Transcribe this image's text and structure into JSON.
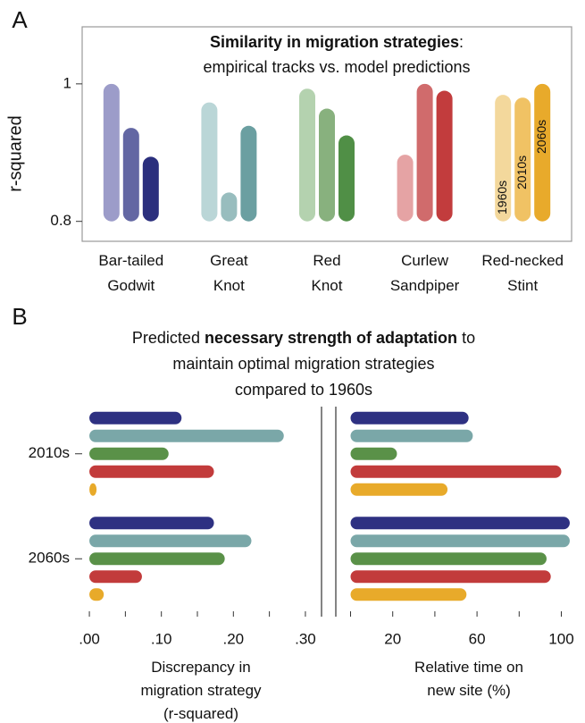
{
  "chart_data": [
    {
      "type": "bar",
      "panel": "A",
      "title_bold": "Similarity in migration strategies",
      "title_end": ":",
      "subtitle": "empirical tracks vs. model predictions",
      "y_label": "r-squared",
      "categories": [
        "Bar-tailed\nGodwit",
        "Great\nKnot",
        "Red\nKnot",
        "Curlew\nSandpiper",
        "Red-necked\nStint"
      ],
      "series": [
        {
          "name": "1960s",
          "colors": [
            "#9c9cc9",
            "#bad6d7",
            "#b4d2af",
            "#e5a3a4",
            "#f3d89c"
          ],
          "values": [
            1.0,
            0.973,
            0.993,
            0.897,
            0.984
          ]
        },
        {
          "name": "2010s",
          "colors": [
            "#6367a3",
            "#98bdbe",
            "#88b17e",
            "#d06b6c",
            "#f0c264"
          ],
          "values": [
            0.936,
            0.842,
            0.964,
            1.0,
            0.98
          ]
        },
        {
          "name": "2060s",
          "colors": [
            "#2b2f7d",
            "#6b9fa1",
            "#508f46",
            "#c23c3d",
            "#e8aa2b"
          ],
          "values": [
            0.894,
            0.939,
            0.925,
            0.99,
            1.0
          ]
        }
      ],
      "ylim": [
        0.771,
        1.083
      ],
      "yticks": [
        0.8,
        1
      ]
    },
    {
      "type": "hbar",
      "panel": "B",
      "title": "Predicted",
      "title_bold": "necessary strength of adaptation",
      "title_end": "to\nmaintain optimal migration strategies\ncompared to 1960s",
      "x_label": "Discrepancy in\nmigration strategy\n(r-squared)",
      "categories": [
        "2010s",
        "2060s"
      ],
      "series": [
        {
          "color": "#2e3182",
          "values": [
            0.128,
            0.173
          ]
        },
        {
          "color": "#7aa7a8",
          "values": [
            0.27,
            0.225
          ]
        },
        {
          "color": "#5a9148",
          "values": [
            0.11,
            0.188
          ]
        },
        {
          "color": "#c23b3b",
          "values": [
            0.173,
            0.073
          ]
        },
        {
          "color": "#e8aa2a",
          "values": [
            0.01,
            0.02
          ]
        }
      ],
      "xlim": [
        -0.01,
        0.31
      ],
      "xticks": [
        {
          "value": 0,
          "label": ".00"
        },
        {
          "value": 0.1,
          "label": ".10"
        },
        {
          "value": 0.2,
          "label": ".20"
        },
        {
          "value": 0.3,
          "label": ".30"
        }
      ],
      "xminorticks": [
        0.05,
        0.15,
        0.25
      ]
    },
    {
      "type": "hbar",
      "x_label": "Relative time on\nnew site (%)",
      "series": [
        {
          "color": "#2e3182",
          "values": [
            56,
            104
          ]
        },
        {
          "color": "#7aa7a8",
          "values": [
            58,
            104
          ]
        },
        {
          "color": "#5a9148",
          "values": [
            22,
            93
          ]
        },
        {
          "color": "#c23b3b",
          "values": [
            100,
            95
          ]
        },
        {
          "color": "#e8aa2a",
          "values": [
            46,
            55
          ]
        }
      ],
      "xlim": [
        -7,
        107
      ],
      "xticks": [
        20,
        60,
        100
      ],
      "xminorticks": [
        0,
        40,
        80
      ]
    }
  ]
}
